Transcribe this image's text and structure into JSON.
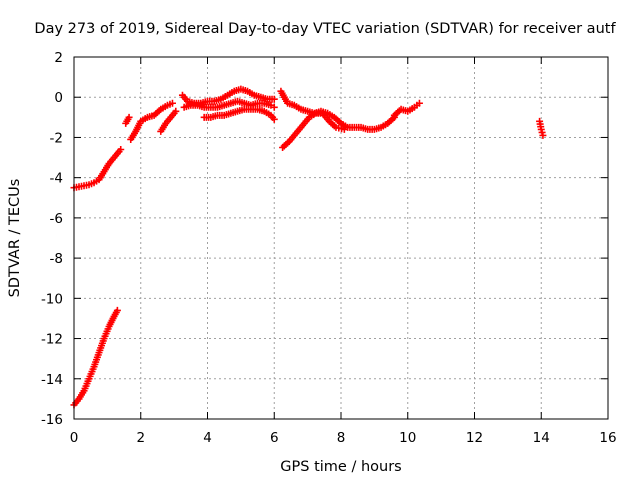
{
  "chart_data": {
    "type": "scatter",
    "title": "Day 273 of 2019, Sidereal Day-to-day VTEC variation (SDTVAR) for receiver autf",
    "xlabel": "GPS time / hours",
    "ylabel": "SDTVAR / TECUs",
    "xlim": [
      0,
      16
    ],
    "ylim": [
      -16,
      2
    ],
    "xticks": [
      "0",
      "2",
      "4",
      "6",
      "8",
      "10",
      "12",
      "14",
      "16"
    ],
    "yticks": [
      "2",
      "0",
      "-2",
      "-4",
      "-6",
      "-8",
      "-10",
      "-12",
      "-14",
      "-16"
    ],
    "grid": true,
    "marker": "plus",
    "color": "#ff0000",
    "series": [
      {
        "name": "SDTVAR",
        "segments": [
          [
            [
              0.0,
              -4.5
            ],
            [
              0.15,
              -4.45
            ],
            [
              0.3,
              -4.4
            ],
            [
              0.45,
              -4.35
            ],
            [
              0.6,
              -4.25
            ],
            [
              0.75,
              -4.1
            ],
            [
              0.9,
              -3.7
            ],
            [
              1.05,
              -3.3
            ],
            [
              1.2,
              -3.0
            ],
            [
              1.35,
              -2.7
            ],
            [
              1.4,
              -2.6
            ]
          ],
          [
            [
              0.0,
              -15.3
            ],
            [
              0.15,
              -15.0
            ],
            [
              0.3,
              -14.6
            ],
            [
              0.45,
              -14.0
            ],
            [
              0.6,
              -13.4
            ],
            [
              0.75,
              -12.7
            ],
            [
              0.9,
              -12.0
            ],
            [
              1.05,
              -11.4
            ],
            [
              1.2,
              -10.9
            ],
            [
              1.3,
              -10.6
            ]
          ],
          [
            [
              1.55,
              -1.3
            ],
            [
              1.65,
              -1.0
            ]
          ],
          [
            [
              1.7,
              -2.1
            ],
            [
              1.85,
              -1.7
            ],
            [
              2.0,
              -1.2
            ],
            [
              2.2,
              -1.0
            ],
            [
              2.4,
              -0.9
            ],
            [
              2.6,
              -0.6
            ],
            [
              2.8,
              -0.4
            ],
            [
              2.95,
              -0.3
            ]
          ],
          [
            [
              2.6,
              -1.7
            ],
            [
              2.75,
              -1.3
            ],
            [
              2.9,
              -1.0
            ],
            [
              3.05,
              -0.7
            ]
          ],
          [
            [
              3.25,
              0.1
            ],
            [
              3.4,
              -0.2
            ],
            [
              3.6,
              -0.3
            ],
            [
              3.8,
              -0.3
            ],
            [
              4.0,
              -0.2
            ],
            [
              4.2,
              -0.2
            ],
            [
              4.4,
              -0.1
            ],
            [
              4.6,
              0.1
            ],
            [
              4.8,
              0.3
            ],
            [
              5.0,
              0.4
            ],
            [
              5.2,
              0.3
            ],
            [
              5.4,
              0.1
            ],
            [
              5.6,
              0.0
            ],
            [
              5.8,
              -0.1
            ],
            [
              6.0,
              -0.1
            ]
          ],
          [
            [
              3.3,
              -0.5
            ],
            [
              3.5,
              -0.4
            ],
            [
              3.7,
              -0.4
            ],
            [
              3.9,
              -0.5
            ],
            [
              4.1,
              -0.5
            ],
            [
              4.3,
              -0.5
            ],
            [
              4.5,
              -0.4
            ],
            [
              4.7,
              -0.3
            ],
            [
              4.9,
              -0.2
            ],
            [
              5.1,
              -0.3
            ],
            [
              5.3,
              -0.4
            ],
            [
              5.5,
              -0.3
            ],
            [
              5.7,
              -0.3
            ],
            [
              5.9,
              -0.4
            ],
            [
              6.0,
              -0.5
            ]
          ],
          [
            [
              3.9,
              -1.0
            ],
            [
              4.1,
              -1.0
            ],
            [
              4.3,
              -0.9
            ],
            [
              4.5,
              -0.9
            ],
            [
              4.7,
              -0.8
            ],
            [
              4.9,
              -0.7
            ],
            [
              5.1,
              -0.6
            ],
            [
              5.3,
              -0.6
            ],
            [
              5.5,
              -0.6
            ],
            [
              5.7,
              -0.7
            ],
            [
              5.9,
              -0.9
            ],
            [
              6.0,
              -1.1
            ]
          ],
          [
            [
              6.2,
              0.3
            ],
            [
              6.4,
              -0.3
            ],
            [
              6.6,
              -0.4
            ],
            [
              6.8,
              -0.6
            ],
            [
              7.0,
              -0.7
            ],
            [
              7.2,
              -0.8
            ],
            [
              7.4,
              -0.7
            ],
            [
              7.6,
              -0.8
            ],
            [
              7.8,
              -1.0
            ],
            [
              8.0,
              -1.3
            ],
            [
              8.2,
              -1.5
            ],
            [
              8.4,
              -1.5
            ],
            [
              8.6,
              -1.5
            ],
            [
              8.8,
              -1.6
            ],
            [
              9.0,
              -1.6
            ],
            [
              9.2,
              -1.5
            ],
            [
              9.4,
              -1.3
            ],
            [
              9.6,
              -1.0
            ]
          ],
          [
            [
              6.25,
              -2.5
            ],
            [
              6.45,
              -2.2
            ],
            [
              6.65,
              -1.8
            ],
            [
              6.85,
              -1.4
            ],
            [
              7.05,
              -1.0
            ],
            [
              7.25,
              -0.8
            ],
            [
              7.45,
              -0.8
            ],
            [
              7.65,
              -1.2
            ],
            [
              7.85,
              -1.5
            ],
            [
              8.1,
              -1.6
            ]
          ],
          [
            [
              9.6,
              -0.9
            ],
            [
              9.8,
              -0.6
            ],
            [
              10.0,
              -0.7
            ],
            [
              10.2,
              -0.5
            ],
            [
              10.35,
              -0.3
            ]
          ],
          [
            [
              13.95,
              -1.2
            ],
            [
              14.0,
              -1.6
            ],
            [
              14.05,
              -1.9
            ]
          ]
        ]
      }
    ]
  }
}
